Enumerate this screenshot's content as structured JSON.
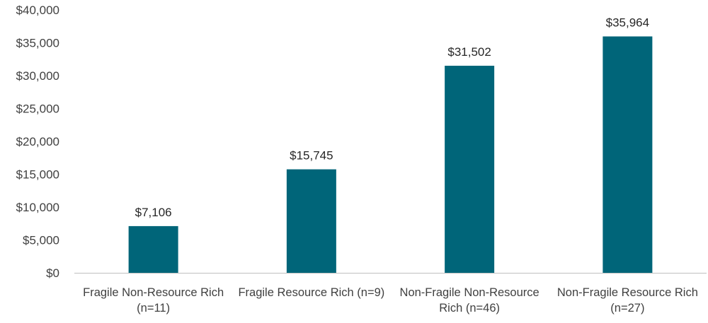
{
  "chart_data": {
    "type": "bar",
    "categories": [
      [
        "Fragile Non-Resource Rich",
        "(n=11)"
      ],
      [
        "Fragile  Resource Rich (n=9)"
      ],
      [
        "Non-Fragile Non-Resource",
        "Rich (n=46)"
      ],
      [
        "Non-Fragile Resource Rich",
        "(n=27)"
      ]
    ],
    "values": [
      7106,
      15745,
      31502,
      35964
    ],
    "data_labels": [
      "$7,106",
      "$15,745",
      "$31,502",
      "$35,964"
    ],
    "ylim": [
      0,
      40000
    ],
    "yticks": [
      0,
      5000,
      10000,
      15000,
      20000,
      25000,
      30000,
      35000,
      40000
    ],
    "ytick_labels": [
      "$0",
      "$5,000",
      "$10,000",
      "$15,000",
      "$20,000",
      "$25,000",
      "$30,000",
      "$35,000",
      "$40,000"
    ],
    "title": "",
    "xlabel": "",
    "ylabel": "",
    "grid": false,
    "legend": "none",
    "bar_color": "#006579",
    "axis_color": "#bfbfbf"
  }
}
